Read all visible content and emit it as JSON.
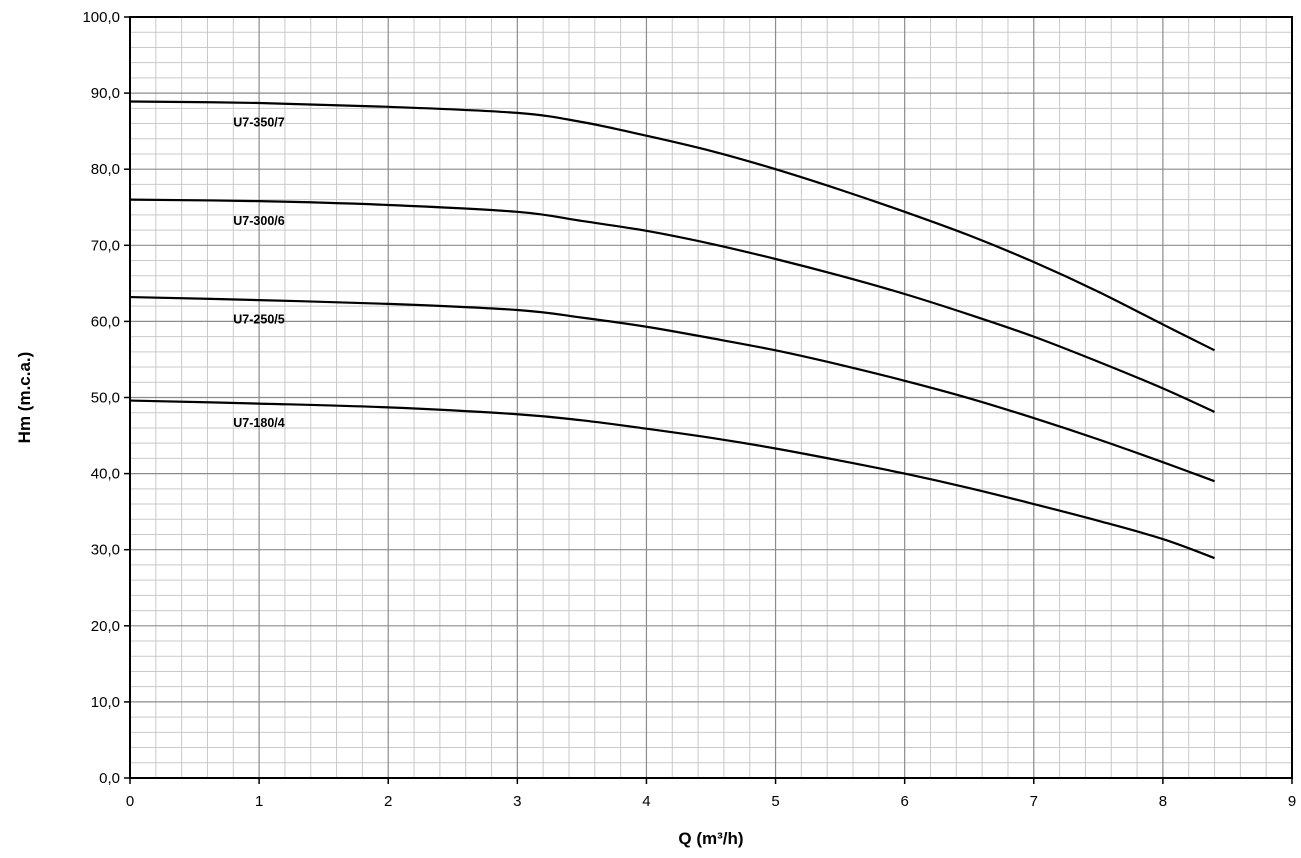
{
  "chart_data": {
    "type": "line",
    "title": "",
    "xlabel": "Q (m³/h)",
    "ylabel": "Hm (m.c.a.)",
    "xlim": [
      0,
      9
    ],
    "ylim": [
      0,
      100
    ],
    "x_ticks": [
      0,
      1,
      2,
      3,
      4,
      5,
      6,
      7,
      8,
      9
    ],
    "x_tick_labels": [
      "0",
      "1",
      "2",
      "3",
      "4",
      "5",
      "6",
      "7",
      "8",
      "9"
    ],
    "y_ticks": [
      0,
      10,
      20,
      30,
      40,
      50,
      60,
      70,
      80,
      90,
      100
    ],
    "y_tick_labels": [
      "0,0",
      "10,0",
      "20,0",
      "30,0",
      "40,0",
      "50,0",
      "60,0",
      "70,0",
      "80,0",
      "90,0",
      "100,0"
    ],
    "grid": true,
    "minor_grid": true,
    "legend": "none",
    "series_label_x": 0.8,
    "series": [
      {
        "name": "U7-350/7",
        "x": [
          0,
          1,
          2,
          3,
          3.5,
          4,
          4.5,
          5,
          5.5,
          6,
          6.5,
          7,
          7.5,
          8,
          8.4
        ],
        "values": [
          88.9,
          88.7,
          88.2,
          87.4,
          86.2,
          84.4,
          82.4,
          80.0,
          77.3,
          74.4,
          71.3,
          67.8,
          63.9,
          59.6,
          56.2
        ]
      },
      {
        "name": "U7-300/6",
        "x": [
          0,
          1,
          2,
          3,
          3.5,
          4,
          4.5,
          5,
          5.5,
          6,
          6.5,
          7,
          7.5,
          8,
          8.4
        ],
        "values": [
          76.0,
          75.8,
          75.3,
          74.4,
          73.2,
          71.9,
          70.2,
          68.2,
          66.0,
          63.6,
          60.9,
          58.0,
          54.7,
          51.2,
          48.1
        ]
      },
      {
        "name": "U7-250/5",
        "x": [
          0,
          1,
          2,
          3,
          3.5,
          4,
          4.5,
          5,
          5.5,
          6,
          6.5,
          7,
          7.5,
          8,
          8.4
        ],
        "values": [
          63.2,
          62.8,
          62.3,
          61.5,
          60.5,
          59.3,
          57.8,
          56.2,
          54.3,
          52.2,
          49.9,
          47.3,
          44.5,
          41.5,
          39.0
        ]
      },
      {
        "name": "U7-180/4",
        "x": [
          0,
          1,
          2,
          3,
          3.5,
          4,
          4.5,
          5,
          5.5,
          6,
          6.5,
          7,
          7.5,
          8,
          8.4
        ],
        "values": [
          49.6,
          49.2,
          48.7,
          47.8,
          47.0,
          45.9,
          44.7,
          43.3,
          41.7,
          40.0,
          38.1,
          36.0,
          33.8,
          31.4,
          28.9
        ]
      }
    ]
  }
}
